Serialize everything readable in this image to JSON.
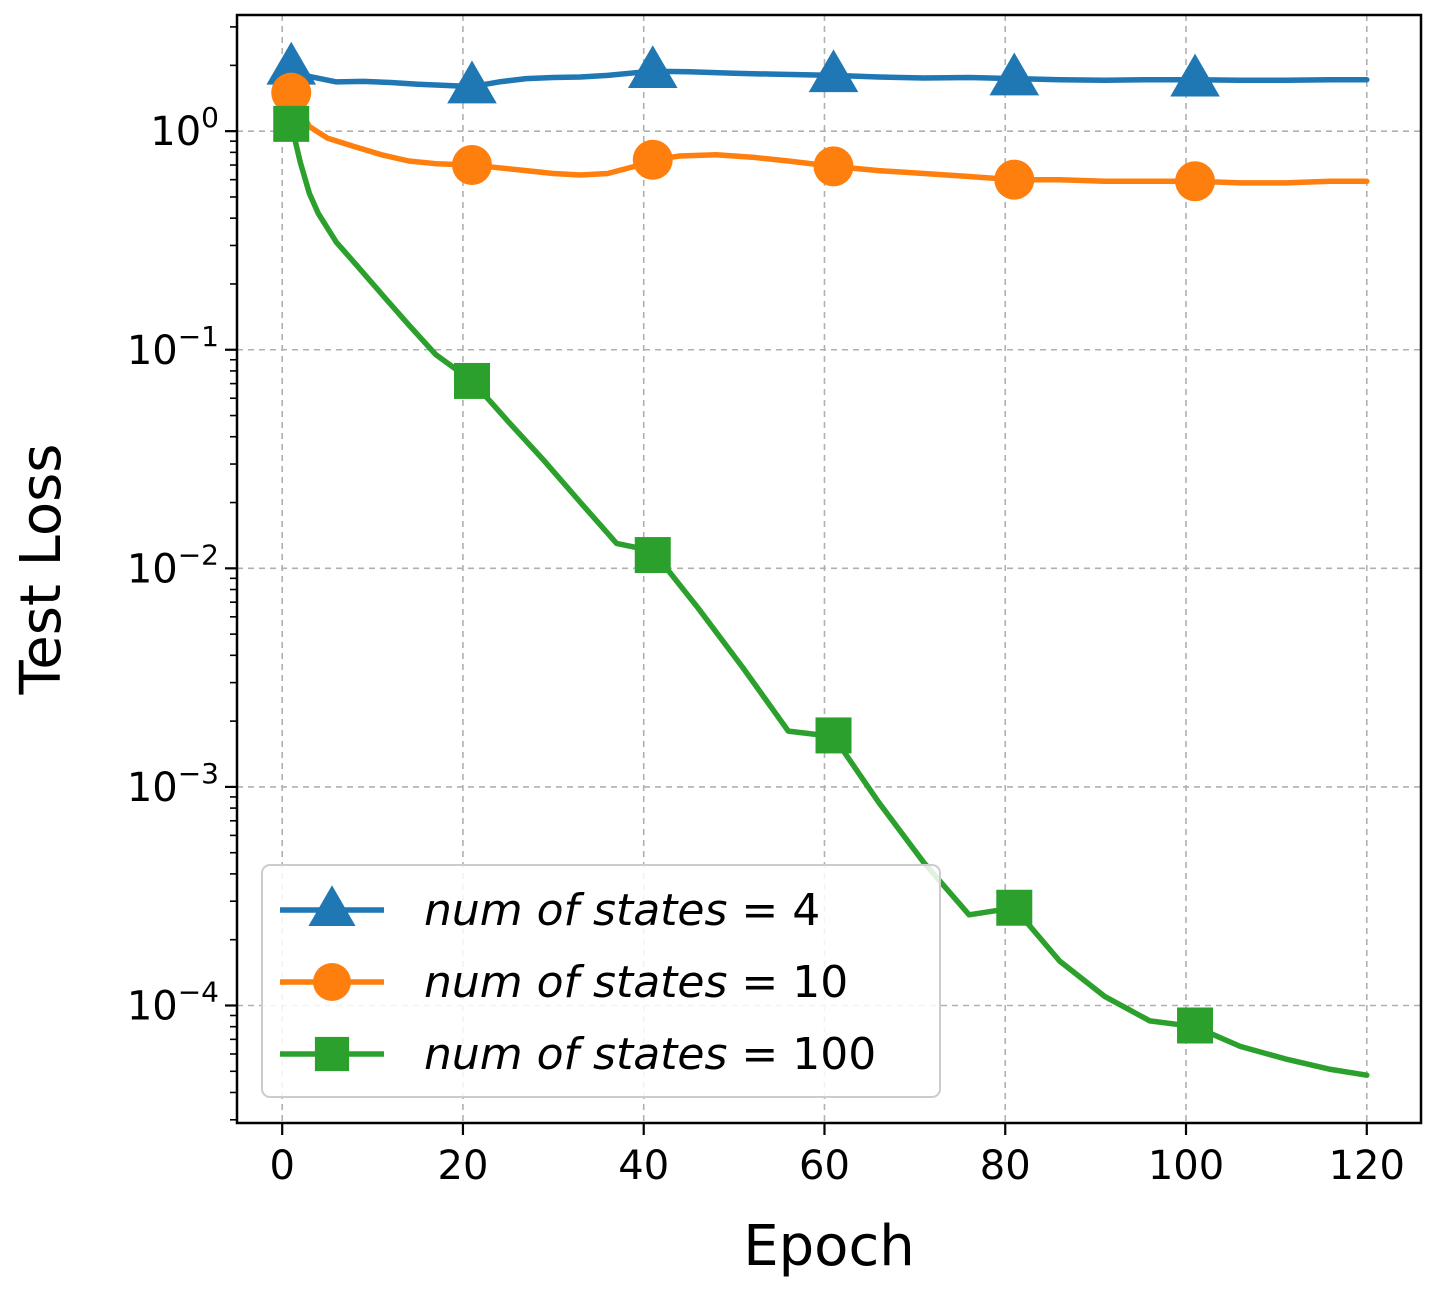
{
  "chart_data": {
    "type": "line",
    "title": "",
    "xlabel": "Epoch",
    "ylabel": "Test Loss",
    "xlim": [
      -5,
      126
    ],
    "ylim": [
      2.9e-05,
      3.4
    ],
    "yscale": "log",
    "xticks": [
      0,
      20,
      40,
      60,
      80,
      100,
      120
    ],
    "xtick_labels": [
      "0",
      "20",
      "40",
      "60",
      "80",
      "100",
      "120"
    ],
    "yticks": [
      1,
      0.1,
      0.01,
      0.001,
      0.0001
    ],
    "ytick_labels": [
      {
        "base": "10",
        "exp": "0"
      },
      {
        "base": "10",
        "exp": "−1"
      },
      {
        "base": "10",
        "exp": "−2"
      },
      {
        "base": "10",
        "exp": "−3"
      },
      {
        "base": "10",
        "exp": "−4"
      }
    ],
    "grid": true,
    "legend_position": "lower-left",
    "series": [
      {
        "name": "num of states = 4",
        "label_text": "num of states",
        "label_value": "4",
        "color": "#1f77b4",
        "marker": "triangle",
        "x": [
          1,
          3,
          6,
          9,
          12,
          15,
          18,
          21,
          24,
          27,
          30,
          33,
          36,
          39,
          41,
          45,
          50,
          55,
          61,
          66,
          71,
          76,
          81,
          86,
          91,
          96,
          101,
          106,
          111,
          116,
          120
        ],
        "y": [
          1.95,
          1.78,
          1.68,
          1.69,
          1.67,
          1.64,
          1.62,
          1.6,
          1.68,
          1.74,
          1.76,
          1.77,
          1.8,
          1.85,
          1.88,
          1.87,
          1.84,
          1.82,
          1.8,
          1.77,
          1.75,
          1.76,
          1.74,
          1.72,
          1.71,
          1.72,
          1.72,
          1.71,
          1.71,
          1.72,
          1.72
        ],
        "marker_x": [
          1,
          21,
          41,
          61,
          81,
          101
        ],
        "marker_y": [
          1.95,
          1.6,
          1.88,
          1.8,
          1.74,
          1.72
        ]
      },
      {
        "name": "num of states = 10",
        "label_text": "num of states",
        "label_value": "10",
        "color": "#ff7f0e",
        "marker": "circle",
        "x": [
          1,
          3,
          5,
          8,
          11,
          14,
          17,
          21,
          24,
          27,
          30,
          33,
          36,
          39,
          41,
          44,
          48,
          52,
          56,
          61,
          66,
          71,
          76,
          81,
          86,
          91,
          96,
          101,
          106,
          111,
          116,
          120
        ],
        "y": [
          1.5,
          1.05,
          0.93,
          0.85,
          0.78,
          0.73,
          0.71,
          0.7,
          0.68,
          0.66,
          0.64,
          0.63,
          0.64,
          0.69,
          0.74,
          0.77,
          0.78,
          0.76,
          0.73,
          0.69,
          0.66,
          0.64,
          0.62,
          0.6,
          0.6,
          0.59,
          0.59,
          0.59,
          0.58,
          0.58,
          0.59,
          0.59
        ],
        "marker_x": [
          1,
          21,
          41,
          61,
          81,
          101
        ],
        "marker_y": [
          1.5,
          0.7,
          0.74,
          0.69,
          0.6,
          0.59
        ]
      },
      {
        "name": "num of states = 100",
        "label_text": "num of states",
        "label_value": "100",
        "color": "#2ca02c",
        "marker": "square",
        "x": [
          1,
          2,
          3,
          4,
          6,
          8,
          11,
          14,
          17,
          21,
          25,
          29,
          33,
          37,
          41,
          46,
          51,
          56,
          61,
          66,
          71,
          76,
          81,
          86,
          91,
          96,
          101,
          106,
          111,
          116,
          120
        ],
        "y": [
          1.08,
          0.72,
          0.52,
          0.42,
          0.31,
          0.25,
          0.18,
          0.13,
          0.095,
          0.072,
          0.047,
          0.031,
          0.02,
          0.013,
          0.012,
          0.0066,
          0.0035,
          0.0018,
          0.0017,
          0.00085,
          0.00045,
          0.00026,
          0.00028,
          0.00016,
          0.00011,
          8.5e-05,
          8e-05,
          6.5e-05,
          5.7e-05,
          5.1e-05,
          4.8e-05
        ],
        "marker_x": [
          1,
          21,
          41,
          61,
          81,
          101
        ],
        "marker_y": [
          1.08,
          0.072,
          0.0115,
          0.00172,
          0.00028,
          8.1e-05
        ]
      }
    ]
  }
}
